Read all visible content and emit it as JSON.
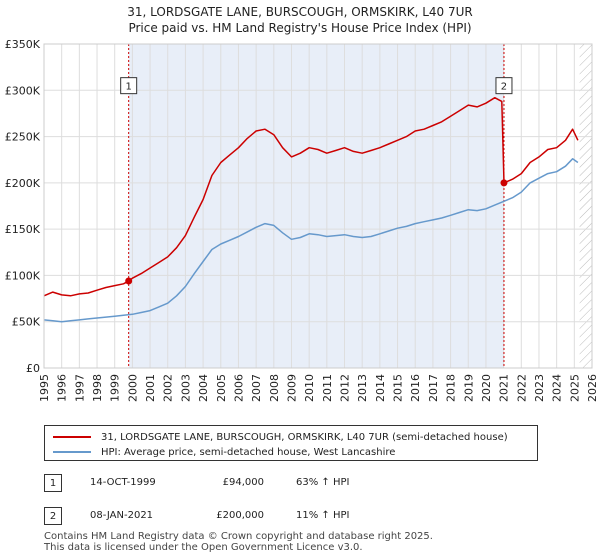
{
  "chart_data": {
    "type": "line",
    "title_lines": [
      "31, LORDSGATE LANE, BURSCOUGH, ORMSKIRK, L40 7UR",
      "Price paid vs. HM Land Registry's House Price Index (HPI)"
    ],
    "xlim": [
      1995,
      2026
    ],
    "ylim": [
      0,
      350000
    ],
    "yticks": [
      0,
      50000,
      100000,
      150000,
      200000,
      250000,
      300000,
      350000
    ],
    "ytick_labels": [
      "£0",
      "£50K",
      "£100K",
      "£150K",
      "£200K",
      "£250K",
      "£300K",
      "£350K"
    ],
    "xticks": [
      1995,
      1996,
      1997,
      1998,
      1999,
      2000,
      2001,
      2002,
      2003,
      2004,
      2005,
      2006,
      2007,
      2008,
      2009,
      2010,
      2011,
      2012,
      2013,
      2014,
      2015,
      2016,
      2017,
      2018,
      2019,
      2020,
      2021,
      2022,
      2023,
      2024,
      2025,
      2026
    ],
    "xtick_labels": [
      "1995",
      "1996",
      "1997",
      "1998",
      "1999",
      "2000",
      "2001",
      "2002",
      "2003",
      "2004",
      "2005",
      "2006",
      "2007",
      "2008",
      "2009",
      "2010",
      "2011",
      "2012",
      "2013",
      "2014",
      "2015",
      "2016",
      "2017",
      "2018",
      "2019",
      "2020",
      "2021",
      "2022",
      "2023",
      "2024",
      "2025",
      "2026"
    ],
    "grid": true,
    "colors": {
      "property": "#cc0000",
      "hpi": "#6699cc",
      "shade": "#e8eef8",
      "vline": "#cc0000",
      "plot_bg": "#ffffff"
    },
    "shaded_period": [
      1999.79,
      2021.02
    ],
    "future_hatch_from": 2025.3,
    "series": [
      {
        "name": "31, LORDSGATE LANE, BURSCOUGH, ORMSKIRK, L40 7UR (semi-detached house)",
        "key": "property",
        "points": [
          [
            1995.0,
            78000
          ],
          [
            1995.5,
            82000
          ],
          [
            1996.0,
            79000
          ],
          [
            1996.5,
            78000
          ],
          [
            1997.0,
            80000
          ],
          [
            1997.5,
            81000
          ],
          [
            1998.0,
            84000
          ],
          [
            1998.5,
            87000
          ],
          [
            1999.0,
            89000
          ],
          [
            1999.5,
            91000
          ],
          [
            1999.79,
            94000
          ],
          [
            2000.0,
            97000
          ],
          [
            2000.5,
            102000
          ],
          [
            2001.0,
            108000
          ],
          [
            2001.5,
            114000
          ],
          [
            2002.0,
            120000
          ],
          [
            2002.5,
            130000
          ],
          [
            2003.0,
            143000
          ],
          [
            2003.5,
            163000
          ],
          [
            2004.0,
            182000
          ],
          [
            2004.5,
            208000
          ],
          [
            2005.0,
            222000
          ],
          [
            2005.5,
            230000
          ],
          [
            2006.0,
            238000
          ],
          [
            2006.5,
            248000
          ],
          [
            2007.0,
            256000
          ],
          [
            2007.5,
            258000
          ],
          [
            2008.0,
            252000
          ],
          [
            2008.5,
            238000
          ],
          [
            2009.0,
            228000
          ],
          [
            2009.5,
            232000
          ],
          [
            2010.0,
            238000
          ],
          [
            2010.5,
            236000
          ],
          [
            2011.0,
            232000
          ],
          [
            2011.5,
            235000
          ],
          [
            2012.0,
            238000
          ],
          [
            2012.5,
            234000
          ],
          [
            2013.0,
            232000
          ],
          [
            2013.5,
            235000
          ],
          [
            2014.0,
            238000
          ],
          [
            2014.5,
            242000
          ],
          [
            2015.0,
            246000
          ],
          [
            2015.5,
            250000
          ],
          [
            2016.0,
            256000
          ],
          [
            2016.5,
            258000
          ],
          [
            2017.0,
            262000
          ],
          [
            2017.5,
            266000
          ],
          [
            2018.0,
            272000
          ],
          [
            2018.5,
            278000
          ],
          [
            2019.0,
            284000
          ],
          [
            2019.5,
            282000
          ],
          [
            2020.0,
            286000
          ],
          [
            2020.5,
            292000
          ],
          [
            2020.9,
            288000
          ],
          [
            2021.02,
            200000
          ],
          [
            2021.5,
            204000
          ],
          [
            2022.0,
            210000
          ],
          [
            2022.5,
            222000
          ],
          [
            2023.0,
            228000
          ],
          [
            2023.5,
            236000
          ],
          [
            2024.0,
            238000
          ],
          [
            2024.5,
            246000
          ],
          [
            2024.9,
            258000
          ],
          [
            2025.2,
            246000
          ]
        ]
      },
      {
        "name": "HPI: Average price, semi-detached house, West Lancashire",
        "key": "hpi",
        "points": [
          [
            1995.0,
            52000
          ],
          [
            1995.5,
            51000
          ],
          [
            1996.0,
            50000
          ],
          [
            1996.5,
            51000
          ],
          [
            1997.0,
            52000
          ],
          [
            1997.5,
            53000
          ],
          [
            1998.0,
            54000
          ],
          [
            1998.5,
            55000
          ],
          [
            1999.0,
            56000
          ],
          [
            1999.5,
            57000
          ],
          [
            2000.0,
            58000
          ],
          [
            2000.5,
            60000
          ],
          [
            2001.0,
            62000
          ],
          [
            2001.5,
            66000
          ],
          [
            2002.0,
            70000
          ],
          [
            2002.5,
            78000
          ],
          [
            2003.0,
            88000
          ],
          [
            2003.5,
            102000
          ],
          [
            2004.0,
            115000
          ],
          [
            2004.5,
            128000
          ],
          [
            2005.0,
            134000
          ],
          [
            2005.5,
            138000
          ],
          [
            2006.0,
            142000
          ],
          [
            2006.5,
            147000
          ],
          [
            2007.0,
            152000
          ],
          [
            2007.5,
            156000
          ],
          [
            2008.0,
            154000
          ],
          [
            2008.5,
            146000
          ],
          [
            2009.0,
            139000
          ],
          [
            2009.5,
            141000
          ],
          [
            2010.0,
            145000
          ],
          [
            2010.5,
            144000
          ],
          [
            2011.0,
            142000
          ],
          [
            2011.5,
            143000
          ],
          [
            2012.0,
            144000
          ],
          [
            2012.5,
            142000
          ],
          [
            2013.0,
            141000
          ],
          [
            2013.5,
            142000
          ],
          [
            2014.0,
            145000
          ],
          [
            2014.5,
            148000
          ],
          [
            2015.0,
            151000
          ],
          [
            2015.5,
            153000
          ],
          [
            2016.0,
            156000
          ],
          [
            2016.5,
            158000
          ],
          [
            2017.0,
            160000
          ],
          [
            2017.5,
            162000
          ],
          [
            2018.0,
            165000
          ],
          [
            2018.5,
            168000
          ],
          [
            2019.0,
            171000
          ],
          [
            2019.5,
            170000
          ],
          [
            2020.0,
            172000
          ],
          [
            2020.5,
            176000
          ],
          [
            2021.0,
            180000
          ],
          [
            2021.5,
            184000
          ],
          [
            2022.0,
            190000
          ],
          [
            2022.5,
            200000
          ],
          [
            2023.0,
            205000
          ],
          [
            2023.5,
            210000
          ],
          [
            2024.0,
            212000
          ],
          [
            2024.5,
            218000
          ],
          [
            2024.9,
            226000
          ],
          [
            2025.2,
            222000
          ]
        ]
      }
    ],
    "annotations": [
      {
        "label": "1",
        "x": 1999.79,
        "y": 94000,
        "label_y": 305000
      },
      {
        "label": "2",
        "x": 2021.02,
        "y": 200000,
        "label_y": 305000
      }
    ]
  },
  "legend": {
    "property_label": "31, LORDSGATE LANE, BURSCOUGH, ORMSKIRK, L40 7UR (semi-detached house)",
    "hpi_label": "HPI: Average price, semi-detached house, West Lancashire"
  },
  "transactions": [
    {
      "num": "1",
      "date": "14-OCT-1999",
      "price": "£94,000",
      "hpi": "63% ↑ HPI"
    },
    {
      "num": "2",
      "date": "08-JAN-2021",
      "price": "£200,000",
      "hpi": "11% ↑ HPI"
    }
  ],
  "footer": {
    "line1": "Contains HM Land Registry data © Crown copyright and database right 2025.",
    "line2": "This data is licensed under the Open Government Licence v3.0."
  }
}
